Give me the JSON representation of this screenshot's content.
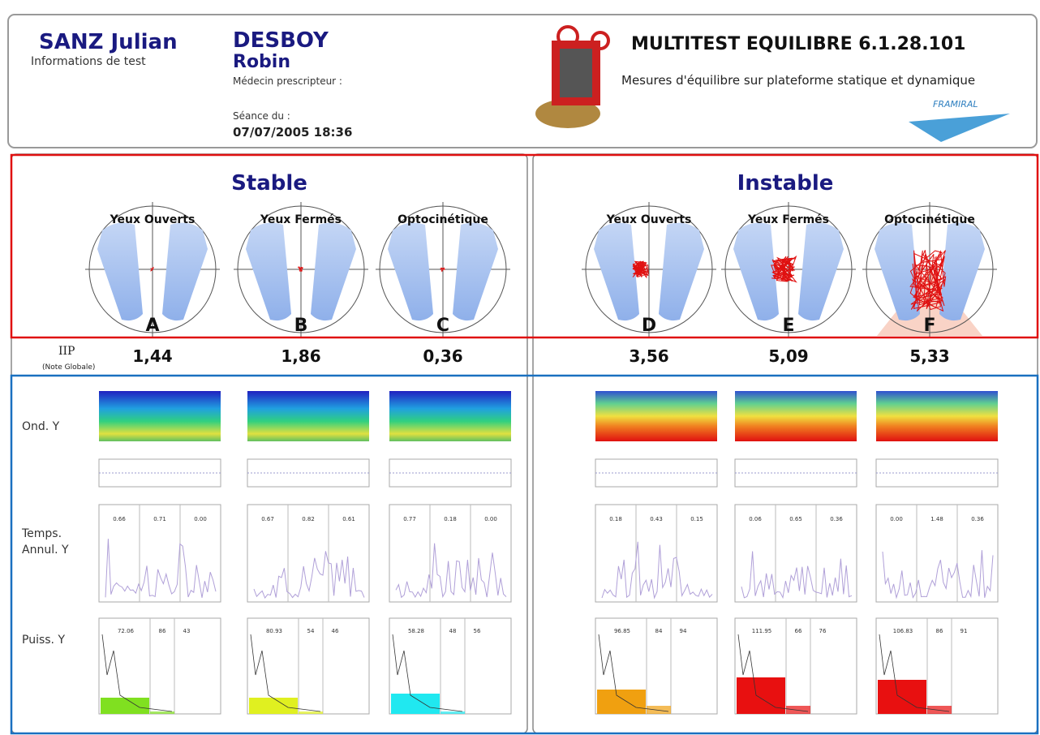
{
  "header": {
    "patient": "SANZ Julian",
    "info": "Informations de test",
    "doctor_last": "DESBOY",
    "doctor_first": "Robin",
    "prescriber": "Médecin prescripteur :",
    "session_label": "Séance du :",
    "session_date": "07/07/2005 18:36",
    "title": "MULTITEST EQUILIBRE 6.1.28.101",
    "subtitle": "Mesures d'équilibre sur plateforme statique et dynamique",
    "brand": "FRAMIRAL"
  },
  "iip_label": "IIP",
  "iip_note": "(Note Globale)",
  "rows": {
    "ond": "Ond. Y",
    "temps": [
      "Temps.",
      "Annul. Y"
    ],
    "puiss": "Puiss. Y"
  },
  "sections": [
    {
      "title": "Stable",
      "tests": [
        {
          "condition": "Yeux Ouverts",
          "letter": "A",
          "iip": "1,44",
          "temps": [
            "0.66",
            "0.71",
            "0.00"
          ],
          "puiss": [
            "72.06",
            "86",
            "43"
          ]
        },
        {
          "condition": "Yeux Fermés",
          "letter": "B",
          "iip": "1,86",
          "temps": [
            "0.67",
            "0.82",
            "0.61"
          ],
          "puiss": [
            "80.93",
            "54",
            "46"
          ]
        },
        {
          "condition": "Optocinétique",
          "letter": "C",
          "iip": "0,36",
          "temps": [
            "0.77",
            "0.18",
            "0.00"
          ],
          "puiss": [
            "58.28",
            "48",
            "56"
          ]
        }
      ]
    },
    {
      "title": "Instable",
      "tests": [
        {
          "condition": "Yeux Ouverts",
          "letter": "D",
          "iip": "3,56",
          "temps": [
            "0.18",
            "0.43",
            "0.15"
          ],
          "puiss": [
            "96.85",
            "84",
            "94"
          ]
        },
        {
          "condition": "Yeux Fermés",
          "letter": "E",
          "iip": "5,09",
          "temps": [
            "0.06",
            "0.65",
            "0.36"
          ],
          "puiss": [
            "111.95",
            "66",
            "76"
          ]
        },
        {
          "condition": "Optocinétique",
          "letter": "F",
          "iip": "5,33",
          "temps": [
            "0.00",
            "1.48",
            "0.36"
          ],
          "puiss": [
            "106.83",
            "86",
            "91"
          ]
        }
      ]
    }
  ]
}
